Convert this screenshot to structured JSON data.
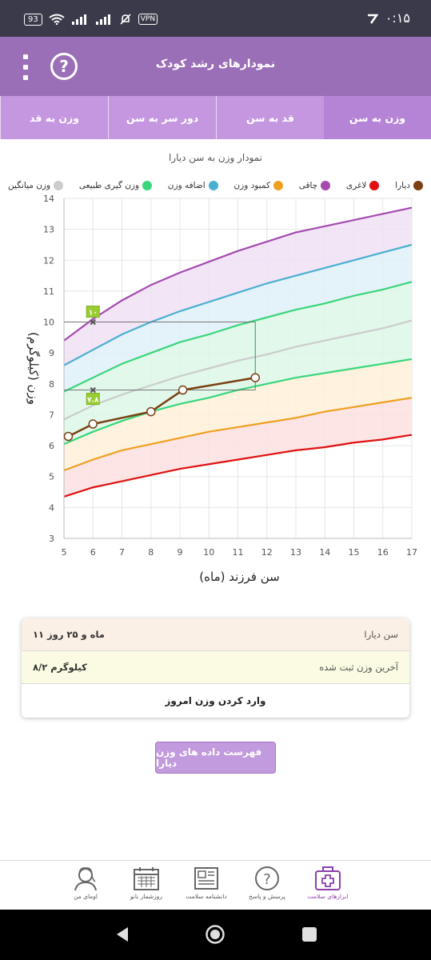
{
  "statusbar": {
    "time": "۰:۱۵",
    "battery": "93",
    "vpn": "VPN"
  },
  "appbar": {
    "title": "نمودارهای رشد کودک",
    "help_symbol": "?"
  },
  "tabs": [
    {
      "label": "وزن به سن",
      "active": true
    },
    {
      "label": "قد به سن",
      "active": false
    },
    {
      "label": "دور سر به سن",
      "active": false
    },
    {
      "label": "وزن به قد",
      "active": false
    }
  ],
  "chart_data": {
    "type": "line",
    "title": "نمودار وزن به سن دیارا",
    "xlabel": "سن فرزند (ماه)",
    "ylabel": "وزن (کیلوگرم)",
    "xlim": [
      5,
      17
    ],
    "ylim": [
      3,
      14
    ],
    "x_ticks": [
      "5",
      "6",
      "7",
      "8",
      "9",
      "10",
      "11",
      "12",
      "13",
      "14",
      "15",
      "16",
      "17"
    ],
    "y_ticks": [
      "3",
      "4",
      "5",
      "6",
      "7",
      "8",
      "9",
      "10",
      "11",
      "12",
      "13",
      "14"
    ],
    "grid": true,
    "legend_position": "top",
    "legend": [
      {
        "name": "دیارا",
        "color": "#7a3f12"
      },
      {
        "name": "لاغری",
        "color": "#e01010"
      },
      {
        "name": "چاقی",
        "color": "#a54bb0"
      },
      {
        "name": "کمبود وزن",
        "color": "#f0a020"
      },
      {
        "name": "اضافه وزن",
        "color": "#4ab0d0"
      },
      {
        "name": "وزن گیری طبیعی",
        "color": "#3ad67c"
      },
      {
        "name": "وزن میانگین",
        "color": "#cccccc"
      }
    ],
    "x": [
      5,
      6,
      7,
      8,
      9,
      10,
      11,
      12,
      13,
      14,
      15,
      16,
      17
    ],
    "series": [
      {
        "name": "چاقی",
        "color": "#a54bb0",
        "values": [
          9.4,
          10.1,
          10.7,
          11.2,
          11.6,
          11.95,
          12.3,
          12.6,
          12.9,
          13.1,
          13.3,
          13.5,
          13.7
        ]
      },
      {
        "name": "اضافه وزن",
        "color": "#4ab0d0",
        "values": [
          8.6,
          9.1,
          9.6,
          10.0,
          10.35,
          10.65,
          10.95,
          11.25,
          11.5,
          11.75,
          12.0,
          12.25,
          12.5
        ]
      },
      {
        "name": "وزن گیری طبیعی",
        "color": "#3ad67c",
        "values": [
          7.75,
          8.2,
          8.65,
          9.0,
          9.35,
          9.6,
          9.9,
          10.15,
          10.4,
          10.6,
          10.85,
          11.05,
          11.3
        ]
      },
      {
        "name": "وزن میانگین",
        "color": "#cccccc",
        "values": [
          6.85,
          7.3,
          7.65,
          7.95,
          8.25,
          8.5,
          8.75,
          8.95,
          9.2,
          9.4,
          9.6,
          9.8,
          10.05
        ]
      },
      {
        "name": "وزن گیری طبیعی",
        "color": "#3ad67c",
        "values": [
          6.05,
          6.45,
          6.8,
          7.1,
          7.35,
          7.55,
          7.8,
          8.0,
          8.2,
          8.35,
          8.5,
          8.65,
          8.8
        ]
      },
      {
        "name": "کمبود وزن",
        "color": "#f0a020",
        "values": [
          5.2,
          5.55,
          5.85,
          6.05,
          6.25,
          6.45,
          6.6,
          6.75,
          6.9,
          7.1,
          7.25,
          7.4,
          7.55
        ]
      },
      {
        "name": "لاغری",
        "color": "#e01010",
        "values": [
          4.35,
          4.65,
          4.85,
          5.05,
          5.25,
          5.4,
          5.55,
          5.7,
          5.85,
          5.95,
          6.1,
          6.2,
          6.35
        ]
      },
      {
        "name": "دیارا",
        "color": "#7a3f12",
        "points": [
          [
            5.15,
            6.3
          ],
          [
            6.0,
            6.7
          ],
          [
            8.0,
            7.1
          ],
          [
            9.1,
            7.8
          ],
          [
            11.6,
            8.2
          ]
        ]
      }
    ],
    "annotations": [
      {
        "x": 6,
        "y": 10.0,
        "label": "۱۰"
      },
      {
        "x": 6,
        "y": 7.8,
        "label": "۷.۸"
      }
    ],
    "guide_x": 11.6
  },
  "info": {
    "age_label": "سن دیارا",
    "age_value": "۱۱ ماه و ۲۵ روز",
    "weight_label": "آخرین وزن ثبت شده",
    "weight_value": "۸/۲ کیلوگرم",
    "enter_label": "وارد کردن وزن امروز"
  },
  "list_button": "فهرست داده های وزن دیارا",
  "bottom_nav": [
    {
      "label": "ابزارهای سلامت",
      "icon": "medical-kit-icon",
      "active": true
    },
    {
      "label": "پرسش و پاسخ",
      "icon": "question-icon",
      "active": false
    },
    {
      "label": "دانشنامه سلامت",
      "icon": "newspaper-icon",
      "active": false
    },
    {
      "label": "روزشمار بانو",
      "icon": "calendar-icon",
      "active": false
    },
    {
      "label": "اومای من",
      "icon": "avatar-icon",
      "active": false
    }
  ]
}
